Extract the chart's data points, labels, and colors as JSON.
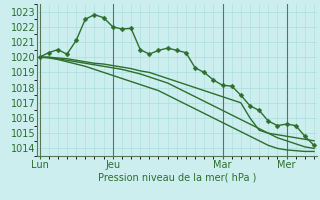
{
  "bg_color": "#cceeee",
  "grid_color": "#aadddd",
  "line_color": "#2d6e2d",
  "marker_color": "#2d6e2d",
  "xlabel_text": "Pression niveau de la mer( hPa )",
  "ylim": [
    1013.5,
    1023.5
  ],
  "yticks": [
    1014,
    1015,
    1016,
    1017,
    1018,
    1019,
    1020,
    1021,
    1022,
    1023
  ],
  "xtick_labels": [
    "Lun",
    "Jeu",
    "Mar",
    "Mer"
  ],
  "xtick_positions": [
    0,
    8,
    20,
    27
  ],
  "vline_positions": [
    0,
    8,
    20,
    27
  ],
  "n_points": 31,
  "series": [
    [
      1020.0,
      1020.3,
      1020.5,
      1020.2,
      1021.1,
      1022.5,
      1022.8,
      1022.6,
      1022.0,
      1021.85,
      1021.9,
      1020.5,
      1020.2,
      1020.45,
      1020.6,
      1020.45,
      1020.3,
      1019.3,
      1019.0,
      1018.5,
      1018.15,
      1018.1,
      1017.5,
      1016.8,
      1016.5,
      1015.8,
      1015.5,
      1015.6,
      1015.5,
      1014.8,
      1014.2
    ],
    [
      1020.0,
      1020.0,
      1019.9,
      1019.8,
      1019.7,
      1019.6,
      1019.5,
      1019.4,
      1019.3,
      1019.2,
      1019.05,
      1018.9,
      1018.7,
      1018.5,
      1018.3,
      1018.0,
      1017.7,
      1017.4,
      1017.1,
      1016.8,
      1016.5,
      1016.2,
      1015.9,
      1015.6,
      1015.3,
      1015.0,
      1014.7,
      1014.5,
      1014.3,
      1014.1,
      1014.0
    ],
    [
      1020.0,
      1019.95,
      1019.85,
      1019.7,
      1019.55,
      1019.4,
      1019.2,
      1019.0,
      1018.8,
      1018.6,
      1018.4,
      1018.2,
      1018.0,
      1017.8,
      1017.5,
      1017.2,
      1016.9,
      1016.6,
      1016.3,
      1016.0,
      1015.7,
      1015.4,
      1015.1,
      1014.8,
      1014.5,
      1014.2,
      1014.0,
      1013.9,
      1013.85,
      1013.8,
      1013.8
    ],
    [
      1020.0,
      1020.0,
      1019.95,
      1019.9,
      1019.8,
      1019.7,
      1019.6,
      1019.55,
      1019.45,
      1019.35,
      1019.25,
      1019.1,
      1019.0,
      1018.8,
      1018.6,
      1018.4,
      1018.2,
      1018.0,
      1017.8,
      1017.6,
      1017.4,
      1017.2,
      1017.0,
      1016.0,
      1015.2,
      1015.0,
      1014.9,
      1014.8,
      1014.7,
      1014.6,
      1014.5
    ]
  ],
  "show_markers": [
    true,
    false,
    false,
    false
  ],
  "marker_size": 2.5,
  "linewidth": 1.0,
  "xlabel_fontsize": 7,
  "tick_fontsize": 7,
  "spine_color": "#557755",
  "vline_color": "#557755"
}
